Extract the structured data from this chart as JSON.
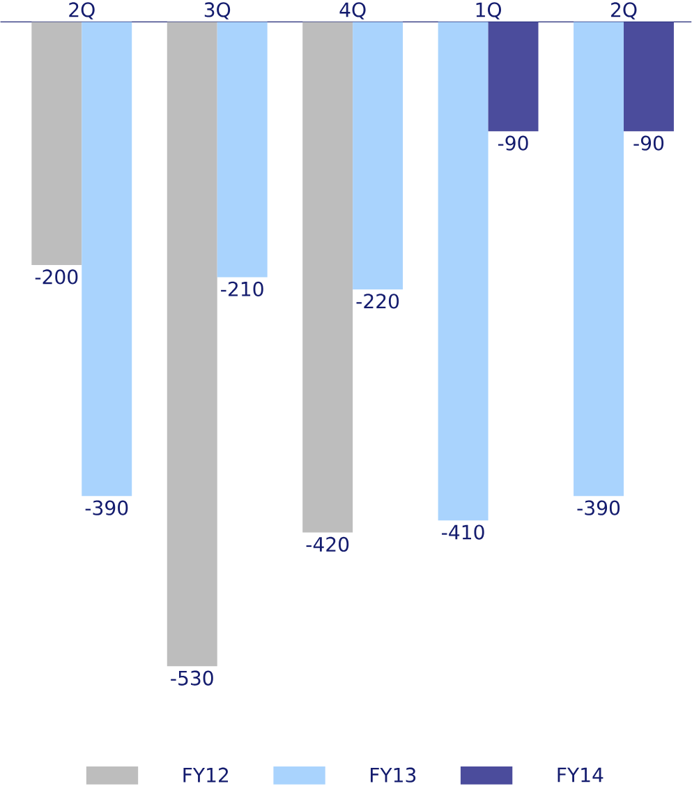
{
  "chart_data": {
    "type": "bar",
    "categories": [
      "2Q",
      "3Q",
      "4Q",
      "1Q",
      "2Q"
    ],
    "series": [
      {
        "name": "FY12",
        "color": "#bdbdbd",
        "values": [
          -200,
          -530,
          -420,
          null,
          null
        ]
      },
      {
        "name": "FY13",
        "color": "#a9d3fd",
        "values": [
          -390,
          -210,
          -220,
          -410,
          -390
        ]
      },
      {
        "name": "FY14",
        "color": "#4b4c9c",
        "values": [
          null,
          null,
          null,
          -90,
          -90
        ]
      }
    ],
    "data_labels": true,
    "legend": "bottom"
  }
}
